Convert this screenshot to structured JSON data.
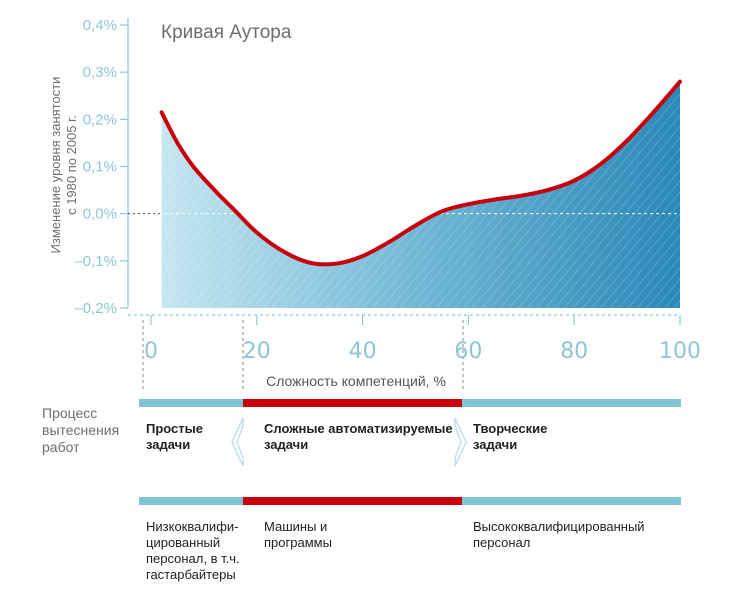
{
  "chart_data": {
    "type": "area",
    "title": "Кривая Аутора",
    "ylabel_line1": "Изменение уровня занятости",
    "ylabel_line2": "с 1980 по 2005 г.",
    "xlabel": "Сложность компетенций, %",
    "ylim": [
      -0.2,
      0.4
    ],
    "xlim": [
      0,
      100
    ],
    "yticks": [
      "0,4%",
      "0,3%",
      "0,2%",
      "0,1%",
      "0,0%",
      "–0,1%",
      "–0,2%"
    ],
    "xticks": [
      "0",
      "20",
      "40",
      "60",
      "80",
      "100"
    ],
    "grid": false,
    "series": [
      {
        "x": [
          2,
          5,
          8,
          12,
          16,
          20,
          25,
          30,
          35,
          40,
          45,
          50,
          55,
          60,
          65,
          70,
          75,
          80,
          85,
          90,
          95,
          100
        ],
        "values": [
          0.215,
          0.15,
          0.1,
          0.05,
          0.005,
          -0.04,
          -0.08,
          -0.104,
          -0.106,
          -0.09,
          -0.06,
          -0.025,
          0.005,
          0.02,
          0.03,
          0.038,
          0.05,
          0.07,
          0.105,
          0.155,
          0.215,
          0.28
        ]
      }
    ],
    "colors": {
      "curve": "#c7000b",
      "fill_light": "#bfe3ee",
      "fill_dark": "#2e8dbb",
      "axis": "#8dc6d6"
    }
  },
  "process": {
    "label": "Процесс вытеснения работ",
    "tasks": [
      {
        "label": "Простые задачи",
        "color": "#7ec3d6"
      },
      {
        "label": "Сложные автоматизируемые задачи",
        "color": "#c7000b"
      },
      {
        "label": "Творческие задачи",
        "color": "#7ec3d6"
      }
    ],
    "workers": [
      {
        "label": "Низкоквалифи-цированный персонал, в т.ч. гастарбайтеры"
      },
      {
        "label": "Машины и программы"
      },
      {
        "label": "Высококвалифицированный персонал"
      }
    ]
  }
}
